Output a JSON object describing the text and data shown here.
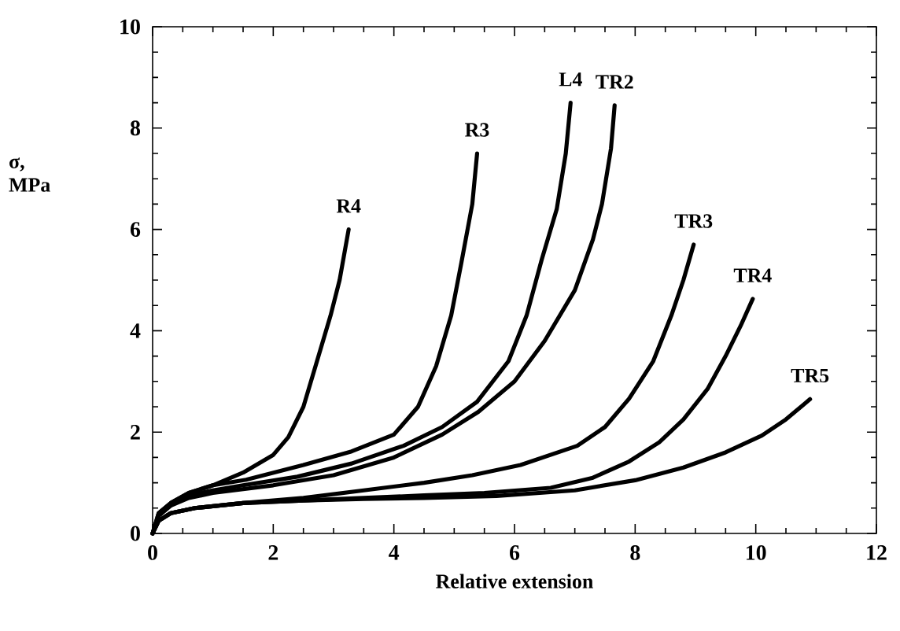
{
  "chart_data": {
    "type": "line",
    "xlabel": "Relative extension",
    "ylabel": "σ, MPa",
    "xlim": [
      0,
      12
    ],
    "ylim": [
      0,
      10
    ],
    "xticks": [
      0,
      2,
      4,
      6,
      8,
      10,
      12
    ],
    "yticks": [
      0,
      2,
      4,
      6,
      8,
      10
    ],
    "series": [
      {
        "name": "R4",
        "color": "#000000",
        "x": [
          0,
          0.1,
          0.3,
          0.6,
          1,
          1.5,
          2,
          2.25,
          2.5,
          2.7,
          2.95,
          3.1,
          3.25
        ],
        "values": [
          0,
          0.4,
          0.6,
          0.8,
          0.95,
          1.2,
          1.55,
          1.9,
          2.5,
          3.3,
          4.3,
          5.0,
          6.0
        ]
      },
      {
        "name": "R3",
        "color": "#000000",
        "x": [
          0,
          0.1,
          0.3,
          0.6,
          1,
          1.55,
          2.5,
          3.3,
          4,
          4.4,
          4.7,
          4.95,
          5.12,
          5.3,
          5.38
        ],
        "values": [
          0,
          0.4,
          0.6,
          0.8,
          0.95,
          1.06,
          1.35,
          1.62,
          1.95,
          2.5,
          3.3,
          4.3,
          5.35,
          6.5,
          7.5
        ]
      },
      {
        "name": "L4",
        "color": "#000000",
        "x": [
          0,
          0.1,
          0.3,
          0.6,
          1,
          1.5,
          2.4,
          3.3,
          4.16,
          4.8,
          5.38,
          5.9,
          6.2,
          6.45,
          6.7,
          6.85,
          6.93
        ],
        "values": [
          0,
          0.35,
          0.55,
          0.75,
          0.85,
          0.95,
          1.12,
          1.38,
          1.73,
          2.1,
          2.6,
          3.4,
          4.3,
          5.4,
          6.4,
          7.5,
          8.5
        ]
      },
      {
        "name": "TR2",
        "color": "#000000",
        "x": [
          0,
          0.1,
          0.3,
          0.6,
          1,
          2,
          3,
          4,
          4.8,
          5.4,
          6,
          6.5,
          7,
          7.3,
          7.45,
          7.6,
          7.66
        ],
        "values": [
          0,
          0.35,
          0.55,
          0.7,
          0.8,
          0.95,
          1.15,
          1.5,
          1.95,
          2.4,
          3.0,
          3.8,
          4.8,
          5.8,
          6.5,
          7.6,
          8.45
        ]
      },
      {
        "name": "TR3",
        "color": "#000000",
        "x": [
          0,
          0.1,
          0.3,
          0.7,
          1.5,
          2.5,
          3.5,
          4.5,
          5.3,
          6.1,
          7.04,
          7.5,
          7.9,
          8.3,
          8.6,
          8.8,
          8.97
        ],
        "values": [
          0,
          0.25,
          0.4,
          0.5,
          0.6,
          0.7,
          0.85,
          1.0,
          1.15,
          1.35,
          1.73,
          2.1,
          2.66,
          3.4,
          4.3,
          5.0,
          5.7
        ]
      },
      {
        "name": "TR4",
        "color": "#000000",
        "x": [
          0,
          0.1,
          0.3,
          0.7,
          1.5,
          2.5,
          3.5,
          4.5,
          5.5,
          6.6,
          7.3,
          7.9,
          8.4,
          8.8,
          9.2,
          9.5,
          9.75,
          9.95
        ],
        "values": [
          0,
          0.25,
          0.4,
          0.5,
          0.6,
          0.65,
          0.7,
          0.75,
          0.8,
          0.9,
          1.1,
          1.42,
          1.8,
          2.25,
          2.85,
          3.5,
          4.1,
          4.63
        ]
      },
      {
        "name": "TR5",
        "color": "#000000",
        "x": [
          0,
          0.1,
          0.3,
          0.7,
          1.5,
          2.5,
          3.5,
          4.5,
          5.7,
          7,
          8,
          8.8,
          9.5,
          10.1,
          10.5,
          10.9
        ],
        "values": [
          0,
          0.25,
          0.4,
          0.5,
          0.6,
          0.65,
          0.68,
          0.7,
          0.74,
          0.85,
          1.05,
          1.3,
          1.6,
          1.93,
          2.25,
          2.65
        ]
      }
    ]
  }
}
